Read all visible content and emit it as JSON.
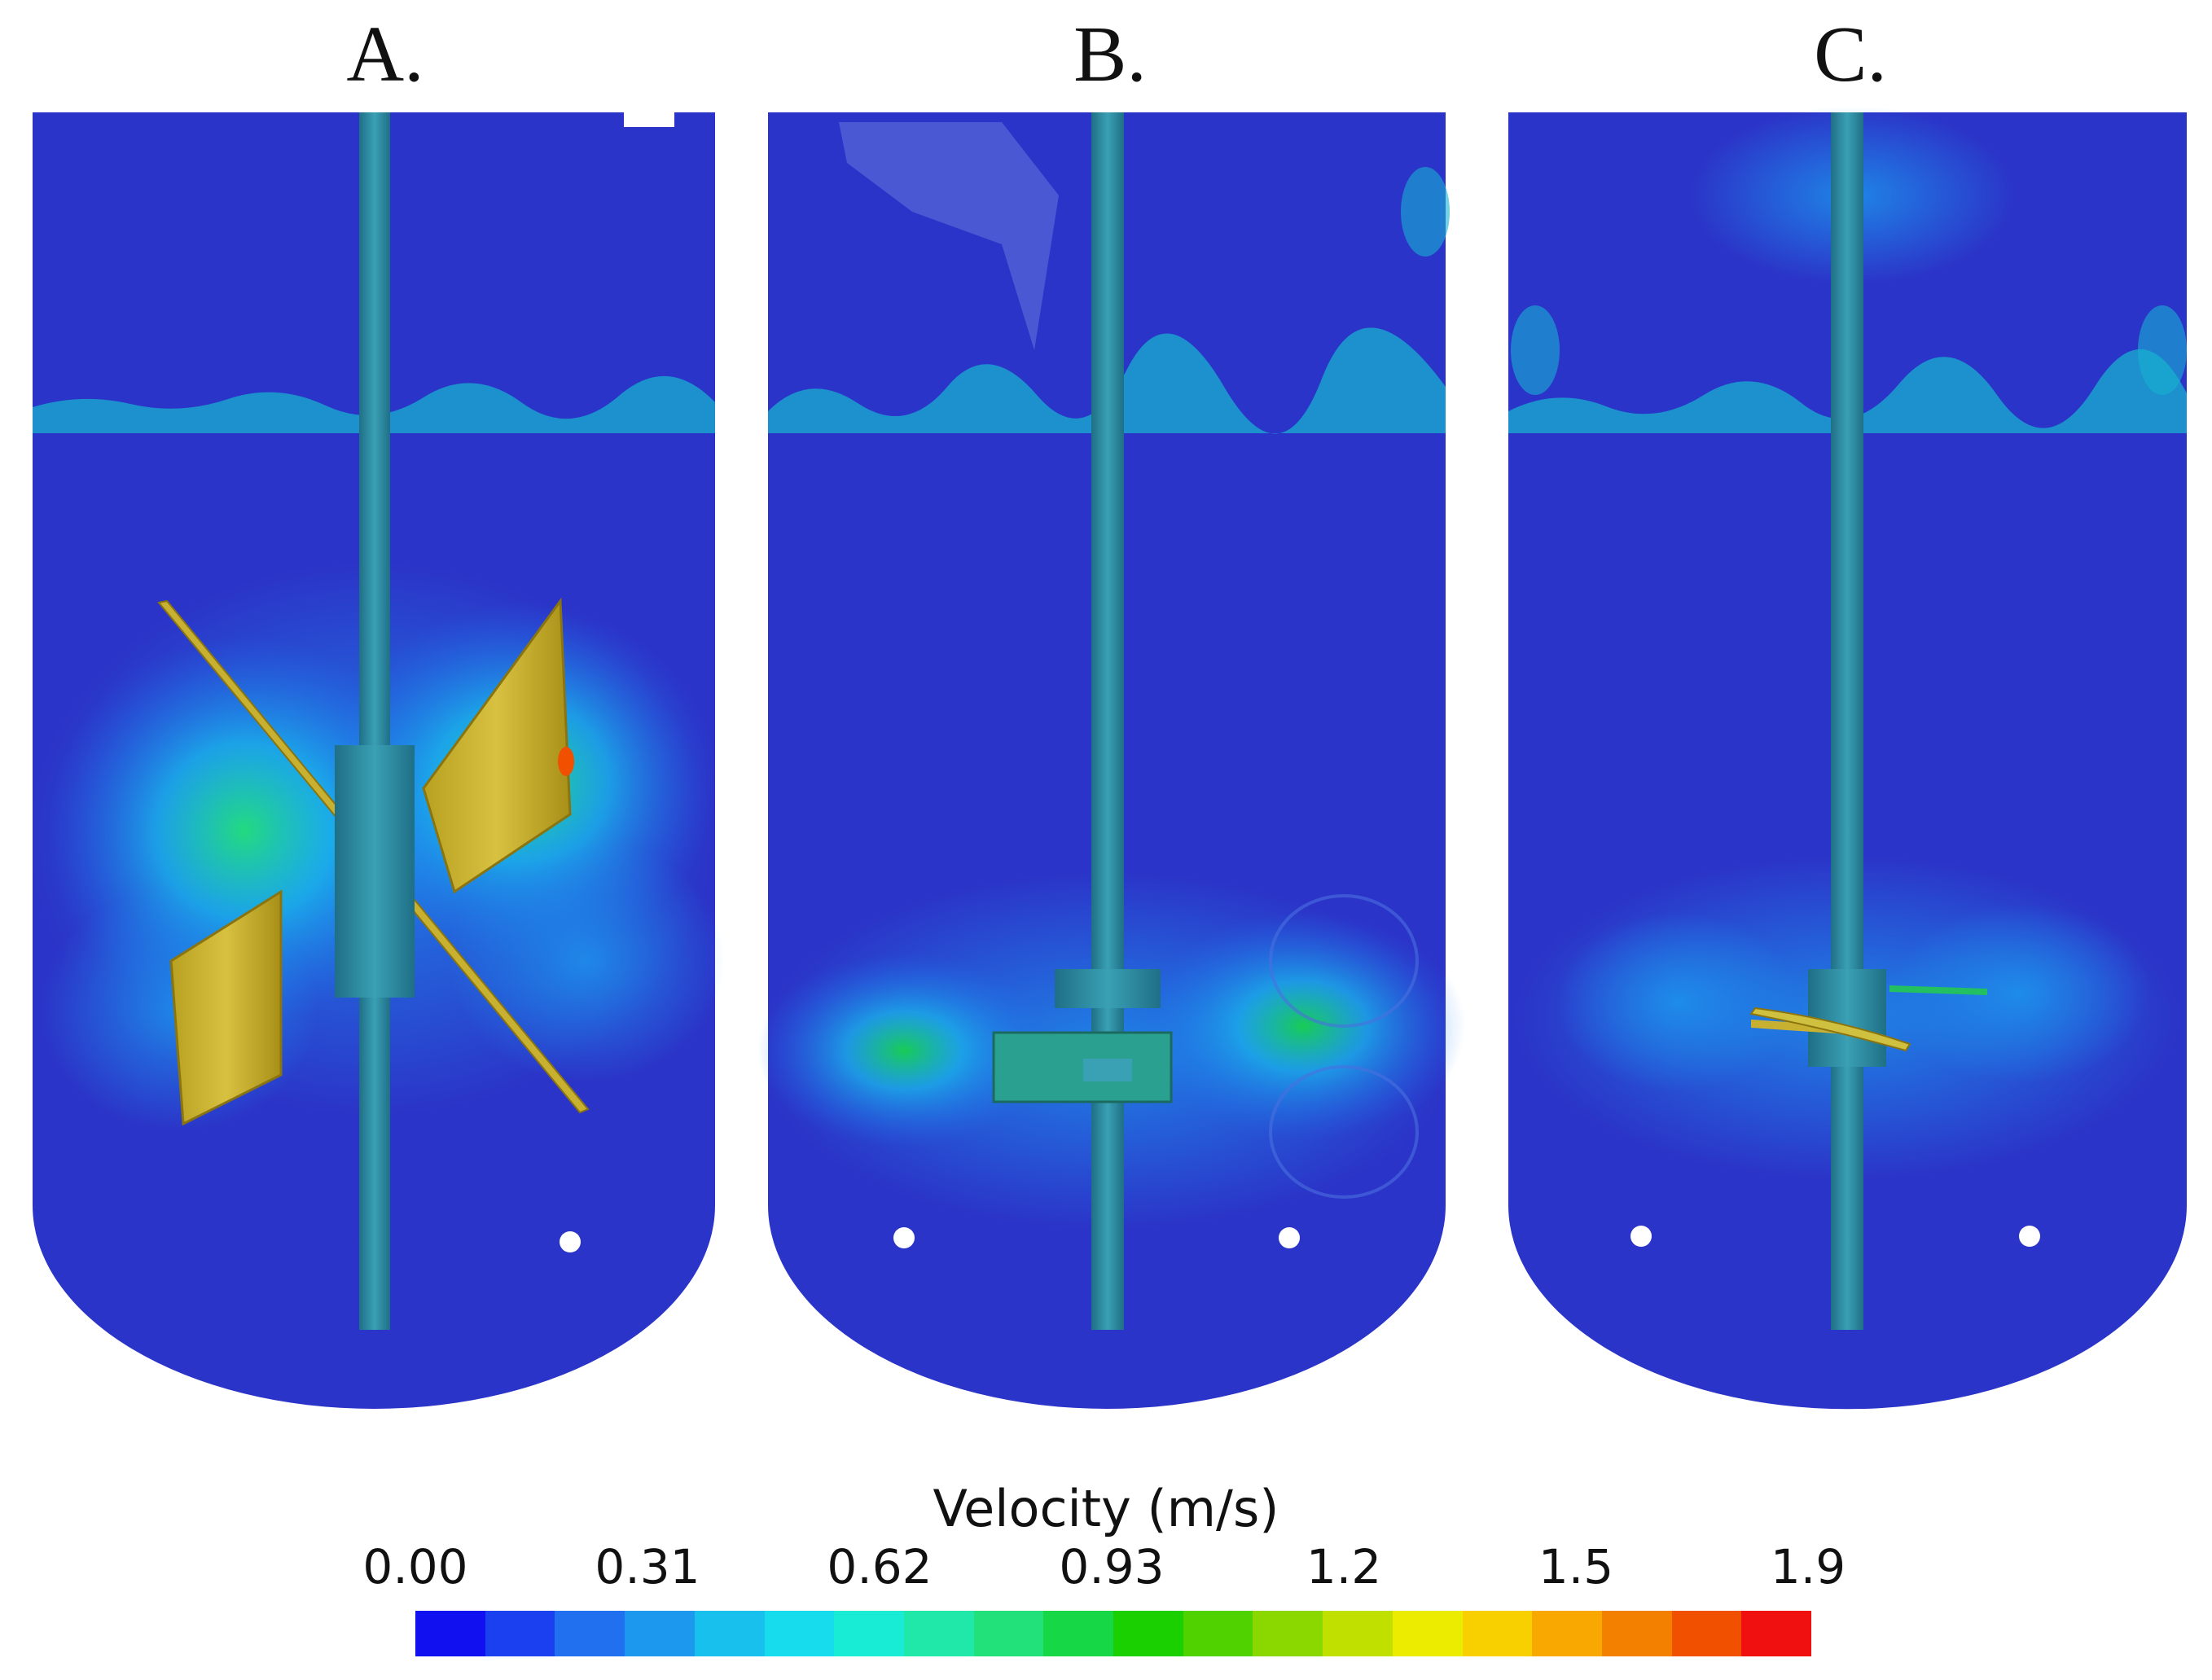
{
  "panels": [
    {
      "label": "A.",
      "impeller": "pitched-blade"
    },
    {
      "label": "B.",
      "impeller": "rushton"
    },
    {
      "label": "C.",
      "impeller": "hydrofoil"
    }
  ],
  "colorbar": {
    "title": "Velocity (m/s)",
    "ticks": [
      "0.00",
      "0.31",
      "0.62",
      "0.93",
      "1.2",
      "1.5",
      "1.9"
    ],
    "colors": [
      "#1010f0",
      "#1a40f0",
      "#2070f0",
      "#1c98ee",
      "#18c0ee",
      "#16dcee",
      "#18ecd4",
      "#20e8a8",
      "#22e07a",
      "#16d846",
      "#1ad000",
      "#50d200",
      "#8ad800",
      "#c0e000",
      "#ecec00",
      "#f8d000",
      "#f8a800",
      "#f48000",
      "#f05000",
      "#f01010"
    ]
  },
  "colors": {
    "fluid_base": "#2b34c8",
    "shaft": "#2e8aa0",
    "blade": "#c8b030"
  }
}
